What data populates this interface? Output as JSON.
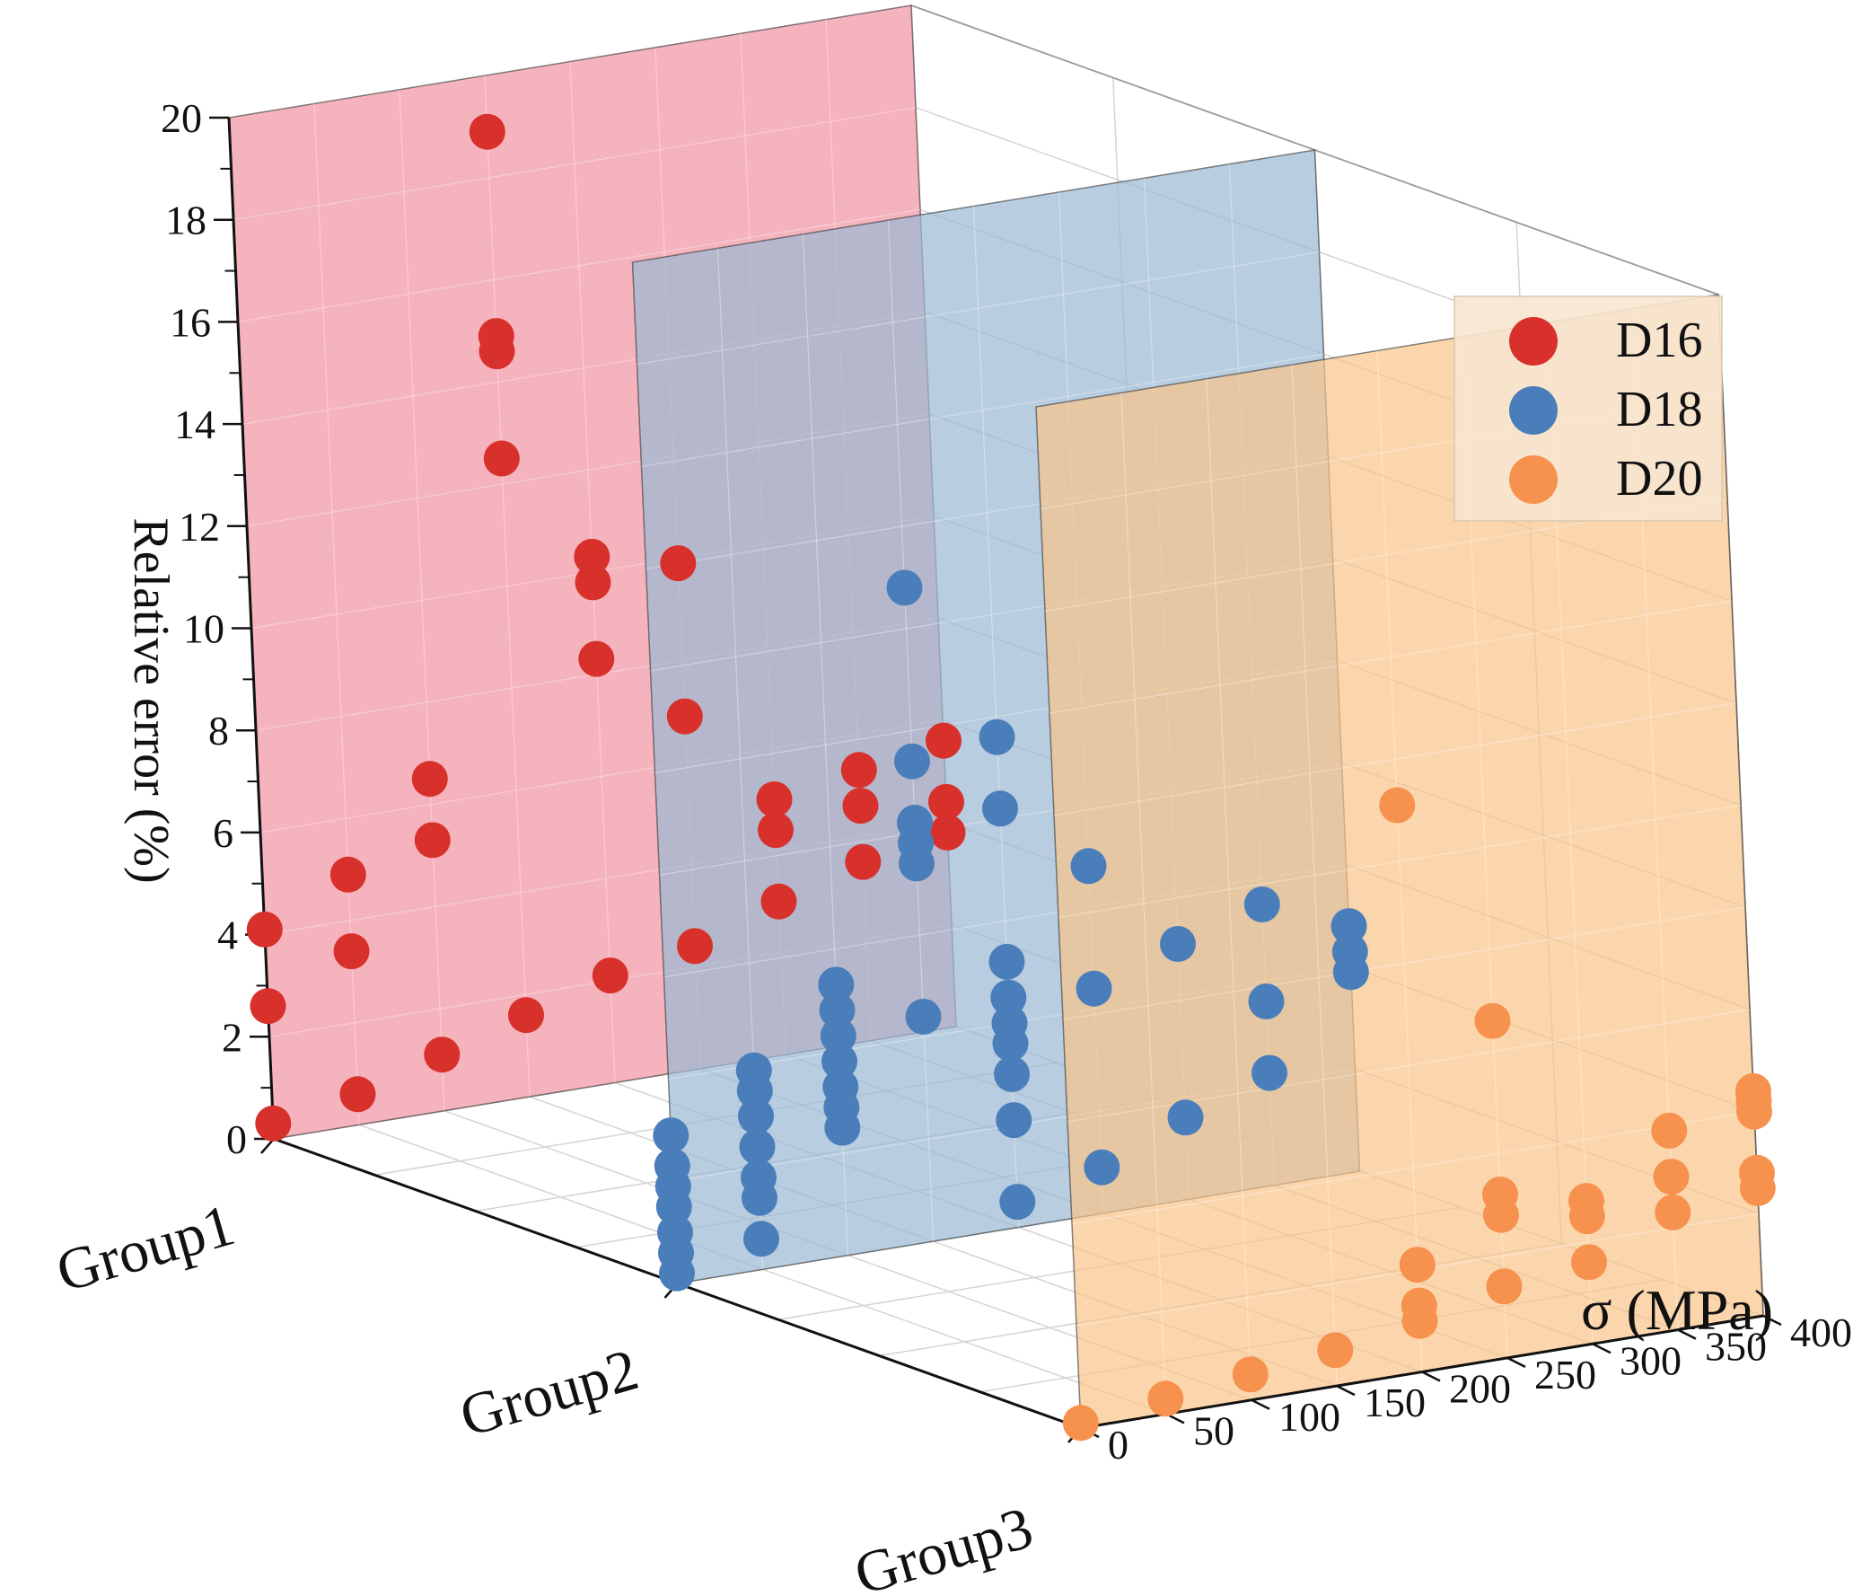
{
  "chart_data": {
    "type": "scatter3d",
    "title": "",
    "xlabel": "",
    "ylabel": "σ (MPa)",
    "zlabel": "Relative error (%)",
    "x_categories": [
      "Group1",
      "Group2",
      "Group3"
    ],
    "y_ticks": [
      "0",
      "50",
      "100",
      "150",
      "200",
      "250",
      "300",
      "350",
      "400"
    ],
    "z_ticks": [
      "0",
      "2",
      "4",
      "6",
      "8",
      "10",
      "12",
      "14",
      "16",
      "18",
      "20"
    ],
    "ylim": [
      0,
      400
    ],
    "zlim": [
      0,
      20
    ],
    "legend_position": "top-right",
    "legend": [
      {
        "label": "D16",
        "color": "#d8302a"
      },
      {
        "label": "D18",
        "color": "#4a7ebb"
      },
      {
        "label": "D20",
        "color": "#f6914e"
      }
    ],
    "plane_colors": {
      "D16": "#f29aa8",
      "D18": "#9dbad2",
      "D20": "#f9c48a"
    },
    "series": [
      {
        "name": "D16",
        "group": "Group1",
        "color": "#d8302a",
        "points": [
          [
            0,
            0.3
          ],
          [
            0,
            2.6
          ],
          [
            0,
            4.1
          ],
          [
            50,
            0.6
          ],
          [
            50,
            3.4
          ],
          [
            50,
            4.9
          ],
          [
            100,
            1.1
          ],
          [
            100,
            5.3
          ],
          [
            100,
            6.5
          ],
          [
            150,
            1.6
          ],
          [
            150,
            12.5
          ],
          [
            150,
            14.6
          ],
          [
            150,
            14.9
          ],
          [
            150,
            18.9
          ],
          [
            200,
            2.1
          ],
          [
            200,
            8.3
          ],
          [
            200,
            9.8
          ],
          [
            200,
            10.3
          ],
          [
            250,
            2.4
          ],
          [
            250,
            6.9
          ],
          [
            250,
            9.9
          ],
          [
            300,
            3.0
          ],
          [
            300,
            4.4
          ],
          [
            300,
            5.0
          ],
          [
            350,
            3.5
          ],
          [
            350,
            4.6
          ],
          [
            350,
            5.3
          ],
          [
            400,
            3.8
          ],
          [
            400,
            4.4
          ],
          [
            400,
            5.6
          ]
        ]
      },
      {
        "name": "D18",
        "group": "Group2",
        "color": "#4a7ebb",
        "points": [
          [
            0,
            0.2
          ],
          [
            0,
            0.6
          ],
          [
            0,
            1.0
          ],
          [
            0,
            1.5
          ],
          [
            0,
            1.9
          ],
          [
            0,
            2.3
          ],
          [
            0,
            2.9
          ],
          [
            50,
            0.6
          ],
          [
            50,
            1.4
          ],
          [
            50,
            1.8
          ],
          [
            50,
            2.4
          ],
          [
            50,
            3.0
          ],
          [
            50,
            3.5
          ],
          [
            50,
            3.9
          ],
          [
            100,
            2.5
          ],
          [
            100,
            2.9
          ],
          [
            100,
            3.3
          ],
          [
            100,
            3.8
          ],
          [
            100,
            4.3
          ],
          [
            100,
            4.8
          ],
          [
            100,
            5.3
          ],
          [
            150,
            4.4
          ],
          [
            150,
            7.4
          ],
          [
            150,
            7.8
          ],
          [
            150,
            8.2
          ],
          [
            150,
            9.4
          ],
          [
            150,
            12.8
          ],
          [
            200,
            0.5
          ],
          [
            200,
            2.1
          ],
          [
            200,
            3.0
          ],
          [
            200,
            3.6
          ],
          [
            200,
            4.0
          ],
          [
            200,
            4.5
          ],
          [
            200,
            5.2
          ],
          [
            200,
            8.2
          ],
          [
            200,
            9.6
          ],
          [
            250,
            0.9
          ],
          [
            250,
            4.4
          ],
          [
            250,
            6.8
          ],
          [
            300,
            1.6
          ],
          [
            300,
            5.0
          ],
          [
            350,
            2.2
          ],
          [
            350,
            3.6
          ],
          [
            350,
            5.5
          ],
          [
            400,
            3.9
          ],
          [
            400,
            4.3
          ],
          [
            400,
            4.8
          ]
        ]
      },
      {
        "name": "D20",
        "group": "Group3",
        "color": "#f6914e",
        "points": [
          [
            0,
            0.1
          ],
          [
            50,
            0.3
          ],
          [
            100,
            0.5
          ],
          [
            150,
            0.7
          ],
          [
            200,
            1.0
          ],
          [
            200,
            1.3
          ],
          [
            200,
            2.1
          ],
          [
            200,
            11.1
          ],
          [
            250,
            1.4
          ],
          [
            250,
            2.8
          ],
          [
            250,
            3.2
          ],
          [
            250,
            6.6
          ],
          [
            300,
            1.6
          ],
          [
            300,
            2.5
          ],
          [
            300,
            2.8
          ],
          [
            350,
            2.3
          ],
          [
            350,
            3.0
          ],
          [
            350,
            3.9
          ],
          [
            400,
            2.5
          ],
          [
            400,
            2.8
          ],
          [
            400,
            4.0
          ],
          [
            400,
            4.2
          ],
          [
            400,
            4.4
          ]
        ]
      }
    ]
  }
}
